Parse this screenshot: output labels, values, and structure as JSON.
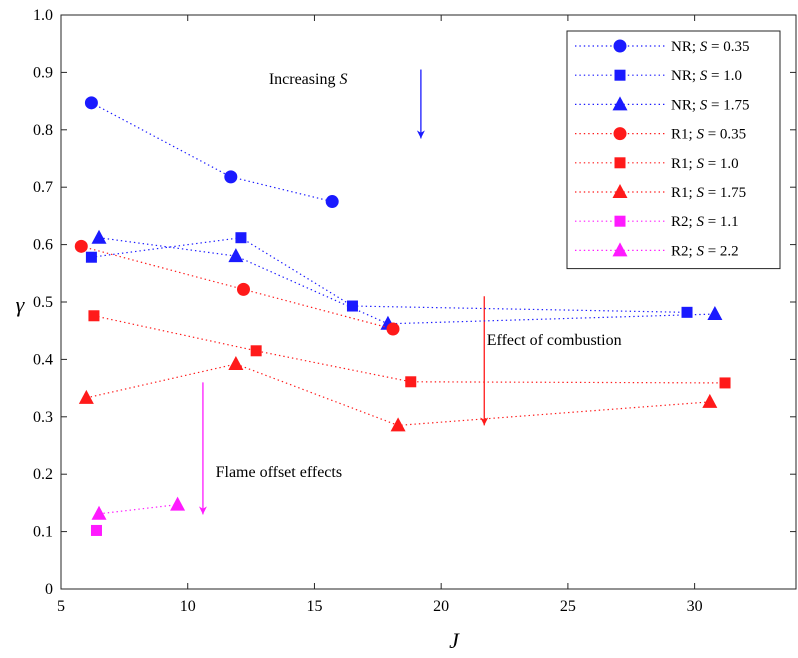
{
  "chart_data": {
    "type": "scatter",
    "xlabel": "J",
    "ylabel": "γ",
    "xlim": [
      5,
      34
    ],
    "ylim": [
      0,
      1.0
    ],
    "xticks": [
      "5",
      "10",
      "15",
      "20",
      "25",
      "30"
    ],
    "yticks": [
      "0",
      "0.1",
      "0.2",
      "0.3",
      "0.4",
      "0.5",
      "0.6",
      "0.7",
      "0.8",
      "0.9",
      "1.0"
    ],
    "grid": false,
    "legend_placement": "top-right",
    "series": [
      {
        "name": "NR; S = 0.35",
        "group": "NR",
        "s": "0.35",
        "color": "#1a1aff",
        "marker": "circle",
        "points": [
          [
            6.2,
            0.847
          ],
          [
            11.7,
            0.718
          ],
          [
            15.7,
            0.675
          ]
        ]
      },
      {
        "name": "NR; S = 1.0",
        "group": "NR",
        "s": "1.0",
        "color": "#1a1aff",
        "marker": "square",
        "points": [
          [
            6.2,
            0.578
          ],
          [
            12.1,
            0.612
          ],
          [
            16.5,
            0.493
          ],
          [
            29.7,
            0.482
          ]
        ]
      },
      {
        "name": "NR; S = 1.75",
        "group": "NR",
        "s": "1.75",
        "color": "#1a1aff",
        "marker": "triangle",
        "points": [
          [
            6.5,
            0.612
          ],
          [
            11.9,
            0.58
          ],
          [
            17.9,
            0.462
          ],
          [
            30.8,
            0.479
          ]
        ]
      },
      {
        "name": "R1; S = 0.35",
        "group": "R1",
        "s": "0.35",
        "color": "#ff1a1a",
        "marker": "circle",
        "points": [
          [
            5.8,
            0.597
          ],
          [
            12.2,
            0.522
          ],
          [
            18.1,
            0.453
          ]
        ]
      },
      {
        "name": "R1; S = 1.0",
        "group": "R1",
        "s": "1.0",
        "color": "#ff1a1a",
        "marker": "square",
        "points": [
          [
            6.3,
            0.476
          ],
          [
            12.7,
            0.415
          ],
          [
            18.8,
            0.361
          ],
          [
            31.2,
            0.359
          ]
        ]
      },
      {
        "name": "R1; S = 1.75",
        "group": "R1",
        "s": "1.75",
        "color": "#ff1a1a",
        "marker": "triangle",
        "points": [
          [
            6.0,
            0.333
          ],
          [
            11.9,
            0.392
          ],
          [
            18.3,
            0.285
          ],
          [
            30.6,
            0.326
          ]
        ]
      },
      {
        "name": "R2; S = 1.1",
        "group": "R2",
        "s": "1.1",
        "color": "#ff1aff",
        "marker": "square",
        "points": [
          [
            6.4,
            0.102
          ]
        ]
      },
      {
        "name": "R2; S = 2.2",
        "group": "R2",
        "s": "2.2",
        "color": "#ff1aff",
        "marker": "triangle",
        "points": [
          [
            6.5,
            0.131
          ],
          [
            9.6,
            0.147
          ]
        ]
      }
    ],
    "annotations": [
      {
        "text_main": "Increasing ",
        "text_var": "S",
        "color": "#1a1aff",
        "text_x": 13.2,
        "text_y": 0.88,
        "arrow_from": [
          19.2,
          0.905
        ],
        "arrow_to": [
          19.2,
          0.785
        ]
      },
      {
        "text_main": "Effect of combustion",
        "text_var": "",
        "color": "#ff1a1a",
        "text_x": 21.8,
        "text_y": 0.425,
        "arrow_from": [
          21.7,
          0.51
        ],
        "arrow_to": [
          21.7,
          0.285
        ]
      },
      {
        "text_main": "Flame offset effects",
        "text_var": "",
        "color": "#ff1aff",
        "text_x": 11.1,
        "text_y": 0.195,
        "arrow_from": [
          10.6,
          0.36
        ],
        "arrow_to": [
          10.6,
          0.13
        ]
      }
    ]
  }
}
